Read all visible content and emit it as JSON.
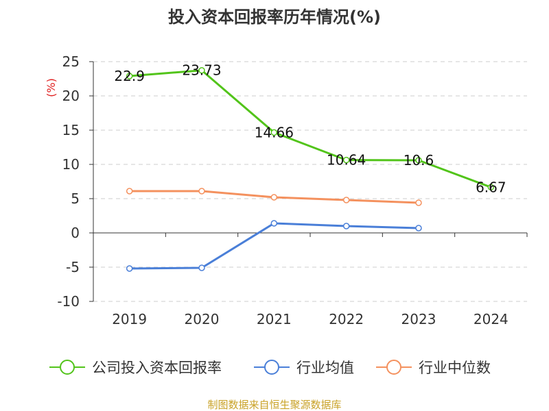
{
  "chart_data": {
    "type": "line",
    "title": "投入资本回报率历年情况(%)",
    "ylabel": "(%)",
    "xlabel": "",
    "categories": [
      "2019",
      "2020",
      "2021",
      "2022",
      "2023",
      "2024"
    ],
    "ylim": [
      -10,
      25
    ],
    "yticks": [
      25,
      20,
      15,
      10,
      5,
      0,
      -5,
      -10
    ],
    "grid": true,
    "legend_position": "bottom",
    "series": [
      {
        "name": "公司投入资本回报率",
        "color": "#52c41a",
        "values": [
          22.9,
          23.73,
          14.66,
          10.64,
          10.6,
          6.67
        ],
        "labels": [
          "22.9",
          "23.73",
          "14.66",
          "10.64",
          "10.6",
          "6.67"
        ]
      },
      {
        "name": "行业均值",
        "color": "#4a7fd8",
        "values": [
          -5.2,
          -5.1,
          1.4,
          1.0,
          0.7,
          null
        ]
      },
      {
        "name": "行业中位数",
        "color": "#f4915e",
        "values": [
          6.1,
          6.1,
          5.2,
          4.8,
          4.4,
          null
        ]
      }
    ],
    "source": "制图数据来自恒生聚源数据库"
  }
}
